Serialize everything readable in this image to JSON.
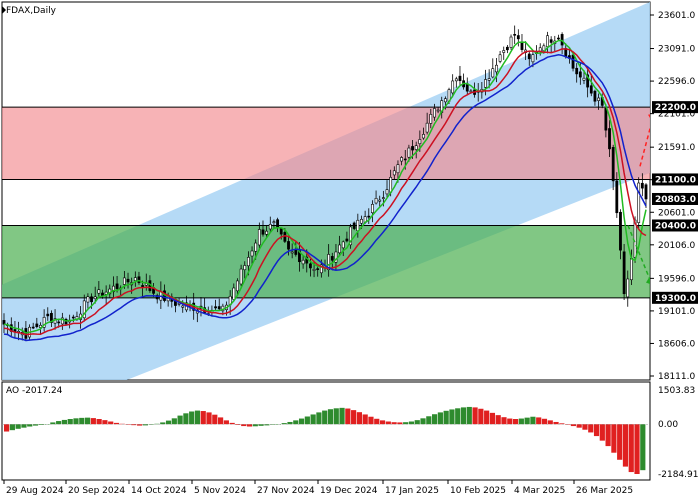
{
  "title": "FDAX,Daily",
  "price_scale": [
    "23601.0",
    "23091.0",
    "22596.0",
    "22101.0",
    "21591.0",
    "21096.0",
    "20601.0",
    "20106.0",
    "19596.0",
    "19101.0",
    "18606.0",
    "18111.0"
  ],
  "price_labels": [
    {
      "text": "22200.0",
      "value": 22200,
      "color": "#000000"
    },
    {
      "text": "21100.0",
      "value": 21100,
      "color": "#000000"
    },
    {
      "text": "20803.0",
      "value": 20803,
      "color": "#000000"
    },
    {
      "text": "20400.0",
      "value": 20400,
      "color": "#000000"
    },
    {
      "text": "19300.0",
      "value": 19300,
      "color": "#000000"
    }
  ],
  "ao_label": "AO -2017.24",
  "ao_scale": [
    "1503.83",
    "0.00",
    "-2184.91"
  ],
  "x_labels": [
    "29 Aug 2024",
    "20 Sep 2024",
    "14 Oct 2024",
    "5 Nov 2024",
    "27 Nov 2024",
    "19 Dec 2024",
    "17 Jan 2025",
    "10 Feb 2025",
    "4 Mar 2025",
    "26 Mar 2025"
  ],
  "colors": {
    "channel": "#a8d4f5",
    "resistance_zone": "#f28b8f",
    "support_zone": "#4caf50",
    "bull_candle": "#ffffff",
    "bear_candle": "#000000",
    "ma_fast": "#22bb22",
    "ma_mid": "#cc1122",
    "ma_slow": "#1122cc",
    "ao_up": "#2e8b2e",
    "ao_down": "#e02020",
    "arrow_up": "#ff2222",
    "arrow_down": "#22aa22"
  },
  "chart_data": {
    "type": "candlestick",
    "symbol": "FDAX",
    "timeframe": "Daily",
    "ylim": [
      18111,
      23601
    ],
    "zones": [
      {
        "name": "resistance",
        "from": 21100,
        "to": 22200
      },
      {
        "name": "support",
        "from": 19300,
        "to": 20400
      }
    ],
    "channel": {
      "lower_start": 17300,
      "lower_end": 21200,
      "upper_start": 19500,
      "upper_end": 23800
    },
    "close_path": [
      {
        "t": 0,
        "c": 18900
      },
      {
        "t": 6,
        "c": 18750
      },
      {
        "t": 12,
        "c": 19000
      },
      {
        "t": 18,
        "c": 18950
      },
      {
        "t": 24,
        "c": 19300
      },
      {
        "t": 30,
        "c": 19450
      },
      {
        "t": 36,
        "c": 19600
      },
      {
        "t": 42,
        "c": 19350
      },
      {
        "t": 48,
        "c": 19200
      },
      {
        "t": 54,
        "c": 19150
      },
      {
        "t": 60,
        "c": 19100
      },
      {
        "t": 66,
        "c": 19800
      },
      {
        "t": 70,
        "c": 20300
      },
      {
        "t": 74,
        "c": 20400
      },
      {
        "t": 78,
        "c": 20000
      },
      {
        "t": 82,
        "c": 19900
      },
      {
        "t": 86,
        "c": 19700
      },
      {
        "t": 90,
        "c": 19950
      },
      {
        "t": 95,
        "c": 20300
      },
      {
        "t": 100,
        "c": 20600
      },
      {
        "t": 104,
        "c": 20900
      },
      {
        "t": 108,
        "c": 21300
      },
      {
        "t": 112,
        "c": 21600
      },
      {
        "t": 116,
        "c": 21950
      },
      {
        "t": 120,
        "c": 22300
      },
      {
        "t": 124,
        "c": 22700
      },
      {
        "t": 128,
        "c": 22400
      },
      {
        "t": 132,
        "c": 22600
      },
      {
        "t": 136,
        "c": 23000
      },
      {
        "t": 140,
        "c": 23300
      },
      {
        "t": 144,
        "c": 22900
      },
      {
        "t": 148,
        "c": 23200
      },
      {
        "t": 152,
        "c": 23300
      },
      {
        "t": 156,
        "c": 22800
      },
      {
        "t": 160,
        "c": 22500
      },
      {
        "t": 164,
        "c": 22200
      },
      {
        "t": 166,
        "c": 21500
      },
      {
        "t": 168,
        "c": 20600
      },
      {
        "t": 170,
        "c": 19300
      },
      {
        "t": 172,
        "c": 19900
      },
      {
        "t": 174,
        "c": 21000
      },
      {
        "t": 176,
        "c": 20803
      }
    ],
    "moving_averages": [
      {
        "name": "fast",
        "color": "green"
      },
      {
        "name": "mid",
        "color": "red"
      },
      {
        "name": "slow",
        "color": "blue"
      }
    ],
    "ao": {
      "last": -2017.24,
      "ylim": [
        -2184.91,
        1503.83
      ],
      "values": [
        -320,
        -260,
        -200,
        -150,
        -100,
        -60,
        -30,
        10,
        80,
        140,
        190,
        230,
        260,
        280,
        290,
        270,
        230,
        180,
        120,
        60,
        20,
        -10,
        -40,
        -60,
        -50,
        -20,
        20,
        80,
        160,
        260,
        380,
        480,
        560,
        600,
        580,
        520,
        420,
        300,
        170,
        60,
        -30,
        -80,
        -100,
        -90,
        -70,
        -50,
        -20,
        10,
        50,
        100,
        170,
        250,
        340,
        430,
        520,
        600,
        660,
        700,
        720,
        690,
        620,
        530,
        430,
        330,
        240,
        170,
        120,
        90,
        80,
        90,
        120,
        180,
        260,
        350,
        440,
        520,
        590,
        650,
        700,
        740,
        760,
        740,
        680,
        600,
        500,
        400,
        310,
        250,
        230,
        250,
        290,
        330,
        300,
        240,
        170,
        100,
        40,
        -20,
        -80,
        -150,
        -240,
        -360,
        -520,
        -720,
        -960,
        -1250,
        -1560,
        -1860,
        -2100,
        -2185,
        -2017
      ]
    }
  }
}
